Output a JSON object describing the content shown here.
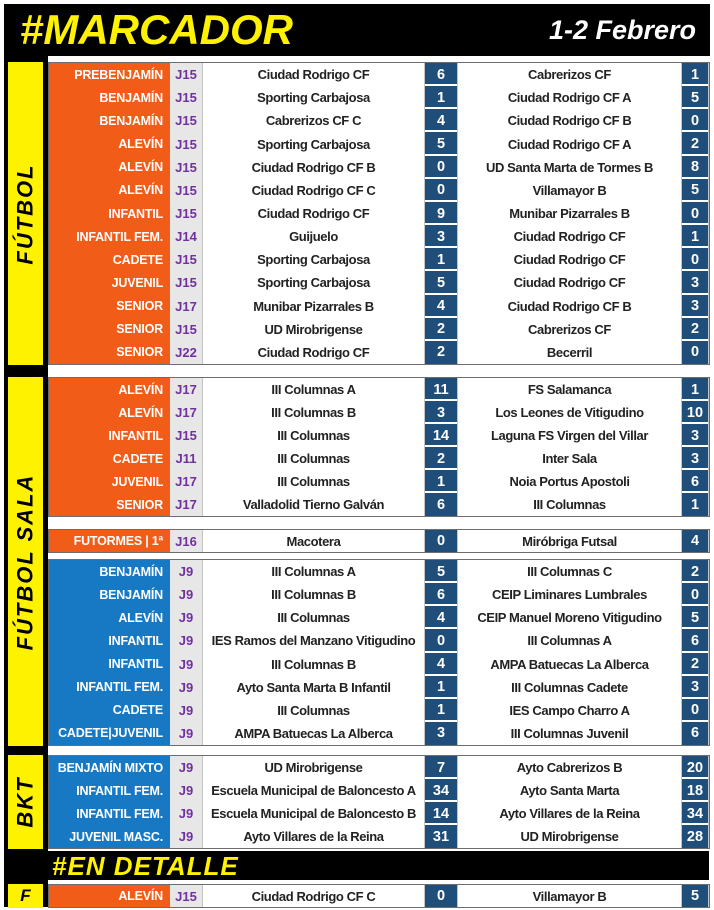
{
  "header": {
    "title": "#MARCADOR",
    "date": "1-2 Febrero"
  },
  "banner": {
    "label": "#EN DETALLE"
  },
  "colors": {
    "black": "#000000",
    "yellow": "#FFF200",
    "orange": "#F25C19",
    "blue": "#1779C4",
    "navy": "#1F4E7A",
    "purple": "#7030A0"
  },
  "groups": [
    {
      "sidebar_label": "FÚTBOL",
      "blocks": [
        {
          "accent": "orange",
          "rows": [
            {
              "category": "PREBENJAMÍN",
              "jornada": "J15",
              "home": "Ciudad Rodrigo CF",
              "home_score": "6",
              "away": "Cabrerizos CF",
              "away_score": "1"
            },
            {
              "category": "BENJAMÍN",
              "jornada": "J15",
              "home": "Sporting Carbajosa",
              "home_score": "1",
              "away": "Ciudad Rodrigo CF A",
              "away_score": "5"
            },
            {
              "category": "BENJAMÍN",
              "jornada": "J15",
              "home": "Cabrerizos CF C",
              "home_score": "4",
              "away": "Ciudad Rodrigo CF B",
              "away_score": "0"
            },
            {
              "category": "ALEVÍN",
              "jornada": "J15",
              "home": "Sporting Carbajosa",
              "home_score": "5",
              "away": "Ciudad Rodrigo CF A",
              "away_score": "2"
            },
            {
              "category": "ALEVÍN",
              "jornada": "J15",
              "home": "Ciudad Rodrigo CF B",
              "home_score": "0",
              "away": "UD Santa Marta de Tormes B",
              "away_score": "8"
            },
            {
              "category": "ALEVÍN",
              "jornada": "J15",
              "home": "Ciudad Rodrigo CF C",
              "home_score": "0",
              "away": "Villamayor B",
              "away_score": "5"
            },
            {
              "category": "INFANTIL",
              "jornada": "J15",
              "home": "Ciudad Rodrigo CF",
              "home_score": "9",
              "away": "Munibar Pizarrales B",
              "away_score": "0"
            },
            {
              "category": "INFANTIL FEM.",
              "jornada": "J14",
              "home": "Guijuelo",
              "home_score": "3",
              "away": "Ciudad Rodrigo CF",
              "away_score": "1"
            },
            {
              "category": "CADETE",
              "jornada": "J15",
              "home": "Sporting Carbajosa",
              "home_score": "1",
              "away": "Ciudad Rodrigo CF",
              "away_score": "0"
            },
            {
              "category": "JUVENIL",
              "jornada": "J15",
              "home": "Sporting Carbajosa",
              "home_score": "5",
              "away": "Ciudad Rodrigo CF",
              "away_score": "3"
            },
            {
              "category": "SENIOR",
              "jornada": "J17",
              "home": "Munibar Pizarrales B",
              "home_score": "4",
              "away": "Ciudad Rodrigo CF B",
              "away_score": "3"
            },
            {
              "category": "SENIOR",
              "jornada": "J15",
              "home": "UD Mirobrigense",
              "home_score": "2",
              "away": "Cabrerizos CF",
              "away_score": "2"
            },
            {
              "category": "SENIOR",
              "jornada": "J22",
              "home": "Ciudad Rodrigo CF",
              "home_score": "2",
              "away": "Becerril",
              "away_score": "0"
            }
          ]
        }
      ]
    },
    {
      "sidebar_label": "FÚTBOL SALA",
      "blocks": [
        {
          "accent": "orange",
          "rows": [
            {
              "category": "ALEVÍN",
              "jornada": "J17",
              "home": "III Columnas A",
              "home_score": "11",
              "away": "FS Salamanca",
              "away_score": "1"
            },
            {
              "category": "ALEVÍN",
              "jornada": "J17",
              "home": "III Columnas B",
              "home_score": "3",
              "away": "Los Leones de Vitigudino",
              "away_score": "10"
            },
            {
              "category": "INFANTIL",
              "jornada": "J15",
              "home": "III Columnas",
              "home_score": "14",
              "away": "Laguna FS Virgen del Villar",
              "away_score": "3"
            },
            {
              "category": "CADETE",
              "jornada": "J11",
              "home": "III Columnas",
              "home_score": "2",
              "away": "Inter Sala",
              "away_score": "3"
            },
            {
              "category": "JUVENIL",
              "jornada": "J17",
              "home": "III Columnas",
              "home_score": "1",
              "away": "Noia Portus Apostoli",
              "away_score": "6"
            },
            {
              "category": "SENIOR",
              "jornada": "J17",
              "home": "Valladolid Tierno Galván",
              "home_score": "6",
              "away": "III Columnas",
              "away_score": "1"
            }
          ]
        },
        {
          "accent": "orange",
          "rows": [
            {
              "category": "FUTORMES | 1ª",
              "jornada": "J16",
              "home": "Macotera",
              "home_score": "0",
              "away": "Miróbriga Futsal",
              "away_score": "4"
            }
          ]
        },
        {
          "accent": "blue",
          "rows": [
            {
              "category": "BENJAMÍN",
              "jornada": "J9",
              "home": "III Columnas A",
              "home_score": "5",
              "away": "III Columnas C",
              "away_score": "2"
            },
            {
              "category": "BENJAMÍN",
              "jornada": "J9",
              "home": "III Columnas B",
              "home_score": "6",
              "away": "CEIP Liminares Lumbrales",
              "away_score": "0"
            },
            {
              "category": "ALEVÍN",
              "jornada": "J9",
              "home": "III Columnas",
              "home_score": "4",
              "away": "CEIP Manuel Moreno Vitigudino",
              "away_score": "5"
            },
            {
              "category": "INFANTIL",
              "jornada": "J9",
              "home": "IES Ramos del Manzano Vitigudino",
              "home_score": "0",
              "away": "III Columnas A",
              "away_score": "6"
            },
            {
              "category": "INFANTIL",
              "jornada": "J9",
              "home": "III Columnas B",
              "home_score": "4",
              "away": "AMPA Batuecas La Alberca",
              "away_score": "2"
            },
            {
              "category": "INFANTIL FEM.",
              "jornada": "J9",
              "home": "Ayto Santa Marta B Infantil",
              "home_score": "1",
              "away": "III Columnas Cadete",
              "away_score": "3"
            },
            {
              "category": "CADETE",
              "jornada": "J9",
              "home": "III Columnas",
              "home_score": "1",
              "away": "IES Campo Charro A",
              "away_score": "0"
            },
            {
              "category": "CADETE|JUVENIL",
              "jornada": "J9",
              "home": "AMPA Batuecas La Alberca",
              "home_score": "3",
              "away": "III Columnas Juvenil",
              "away_score": "6"
            }
          ]
        }
      ]
    },
    {
      "sidebar_label": "BKT",
      "blocks": [
        {
          "accent": "blue",
          "rows": [
            {
              "category": "BENJAMÍN MIXTO",
              "jornada": "J9",
              "home": "UD Mirobrigense",
              "home_score": "7",
              "away": "Ayto Cabrerizos B",
              "away_score": "20"
            },
            {
              "category": "INFANTIL FEM.",
              "jornada": "J9",
              "home": "Escuela Municipal de Baloncesto A",
              "home_score": "34",
              "away": "Ayto Santa Marta",
              "away_score": "18"
            },
            {
              "category": "INFANTIL FEM.",
              "jornada": "J9",
              "home": "Escuela Municipal de Baloncesto B",
              "home_score": "14",
              "away": "Ayto Villares de la Reina",
              "away_score": "34"
            },
            {
              "category": "JUVENIL MASC.",
              "jornada": "J9",
              "home": "Ayto Villares de la Reina",
              "home_score": "31",
              "away": "UD Mirobrigense",
              "away_score": "28"
            }
          ]
        }
      ]
    },
    {
      "sidebar_label": "F",
      "blocks": [
        {
          "accent": "orange",
          "rows": [
            {
              "category": "ALEVÍN",
              "jornada": "J15",
              "home": "Ciudad Rodrigo CF C",
              "home_score": "0",
              "away": "Villamayor B",
              "away_score": "5"
            }
          ]
        }
      ]
    }
  ]
}
